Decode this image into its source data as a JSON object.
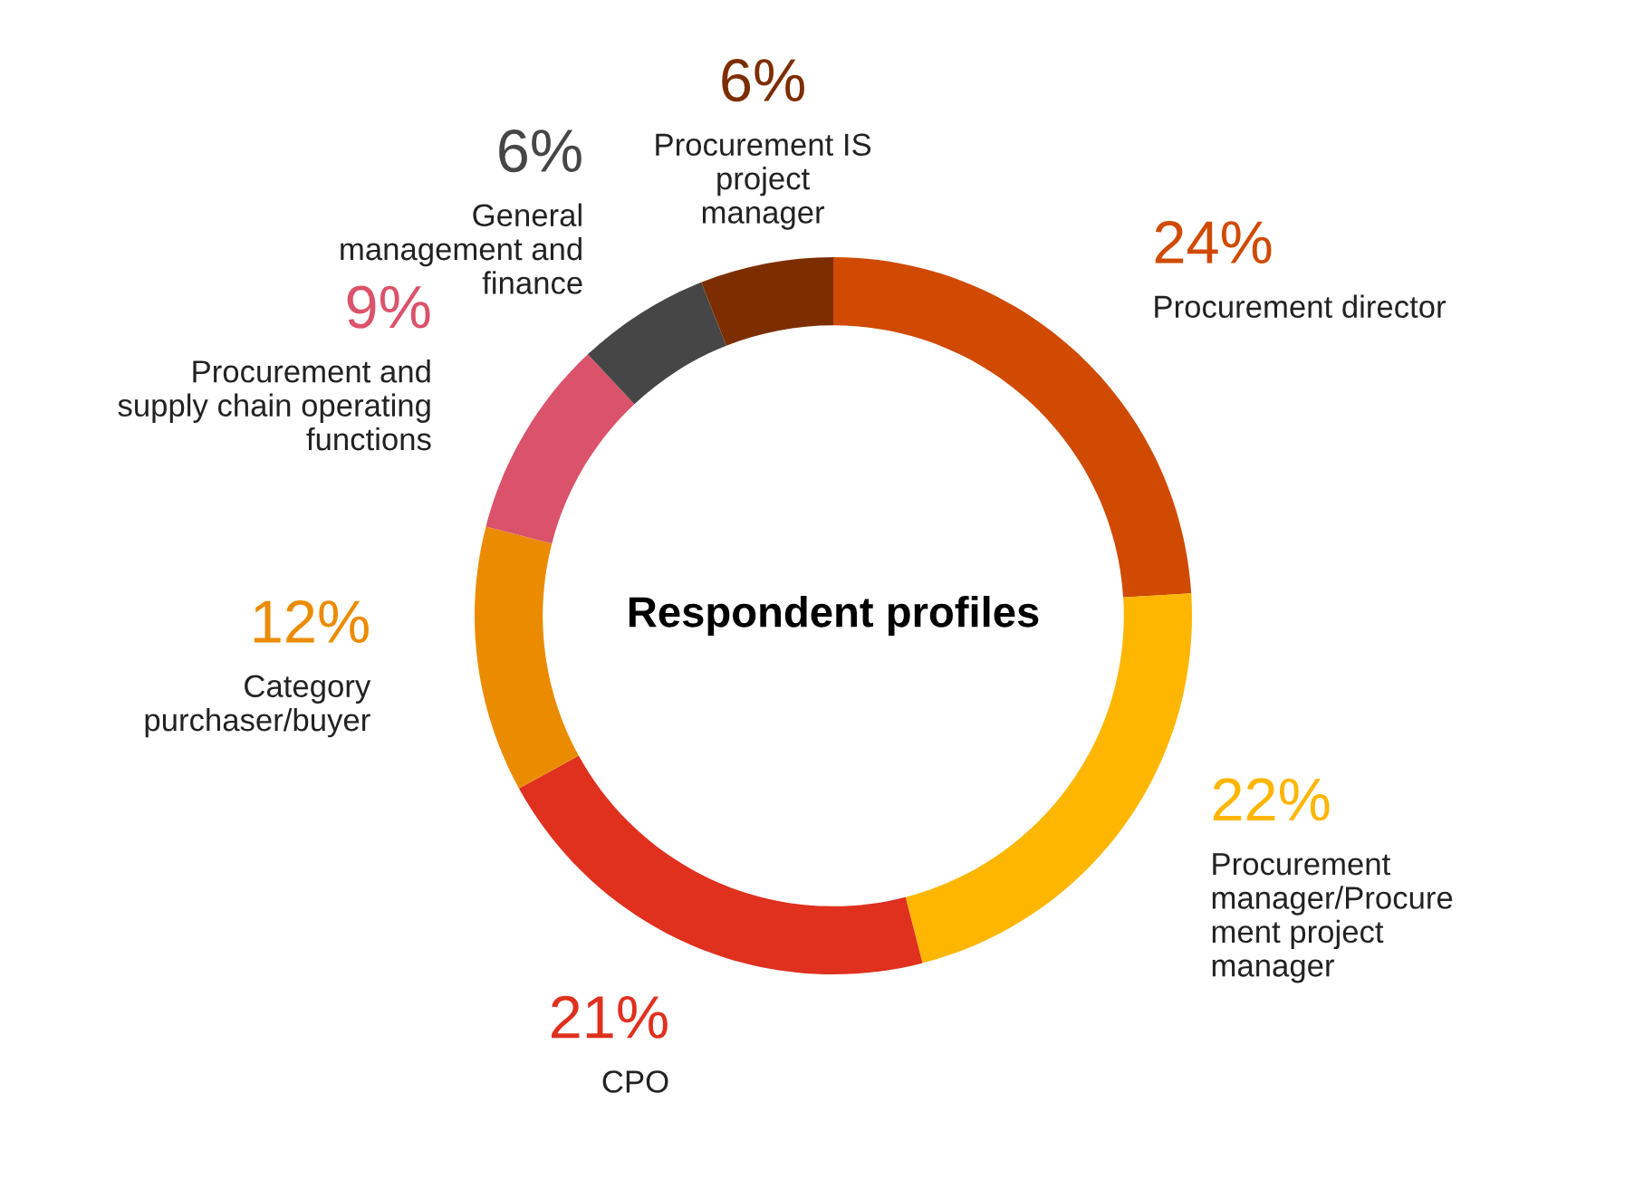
{
  "chart_data": {
    "type": "donut",
    "title": "Respondent profiles",
    "categories": [
      "Procurement director",
      "Procurement\nmanager/Procure\nment project\nmanager",
      "CPO",
      "Category\npurchaser/buyer",
      "Procurement and\nsupply chain operating\nfunctions",
      "General\nmanagement and\nfinance",
      "Procurement IS\nproject\nmanager"
    ],
    "values": [
      24,
      22,
      21,
      12,
      9,
      6,
      6
    ],
    "value_labels": [
      "24%",
      "22%",
      "21%",
      "12%",
      "9%",
      "6%",
      "6%"
    ],
    "colors": [
      "#d04a02",
      "#ffb600",
      "#e0301e",
      "#eb8c00",
      "#db536a",
      "#464646",
      "#7d2e00"
    ]
  }
}
